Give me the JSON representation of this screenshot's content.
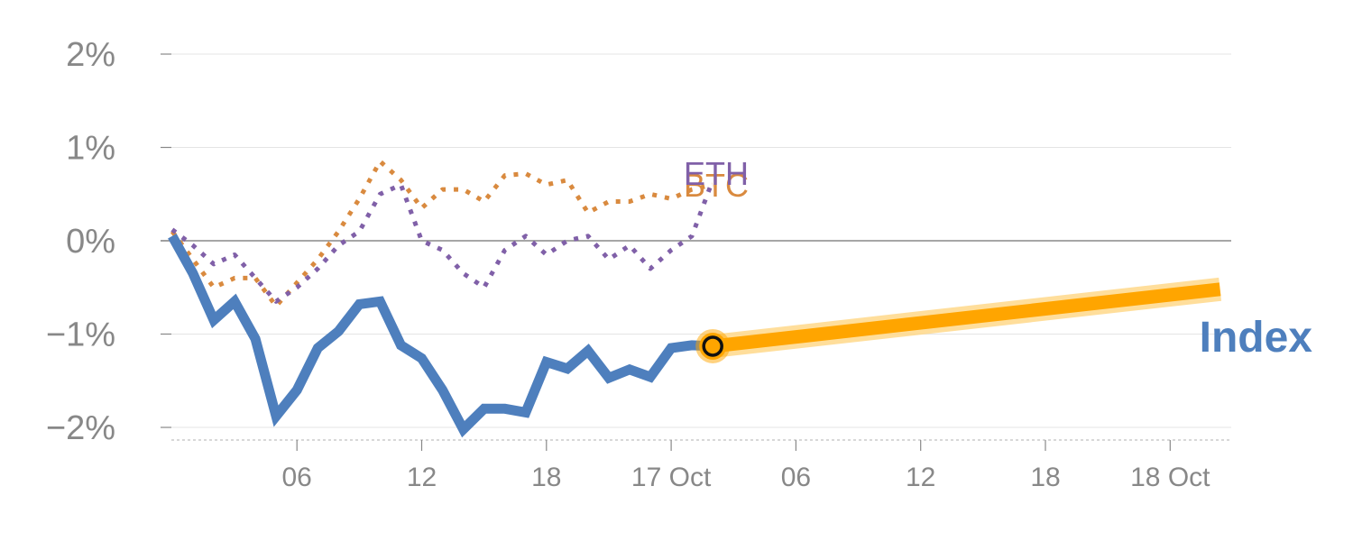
{
  "chart_data": {
    "type": "line",
    "title": "",
    "xlabel": "",
    "ylabel": "",
    "ylim": [
      -2.1,
      2.1
    ],
    "grid": true,
    "y_ticks": [
      {
        "value": 2,
        "label": "2%"
      },
      {
        "value": 1,
        "label": "1%"
      },
      {
        "value": 0,
        "label": "0%"
      },
      {
        "value": -1,
        "label": "−1%"
      },
      {
        "value": -2,
        "label": "−2%"
      }
    ],
    "x_ticks": [
      {
        "hours": 4,
        "label": "06"
      },
      {
        "hours": 10,
        "label": "12"
      },
      {
        "hours": 16,
        "label": "18"
      },
      {
        "hours": 22,
        "label": "17 Oct"
      },
      {
        "hours": 28,
        "label": "06"
      },
      {
        "hours": 34,
        "label": "12"
      },
      {
        "hours": 40,
        "label": "18"
      },
      {
        "hours": 46,
        "label": "18 Oct"
      }
    ],
    "x_range_hours": [
      -1.3,
      50.2
    ],
    "series": [
      {
        "name": "Index",
        "label": "Index",
        "color": "#4e7fbd",
        "style": "solid",
        "x_hours": [
          -2,
          -1,
          0,
          1,
          2,
          3,
          4,
          5,
          6,
          7,
          8,
          9,
          10,
          11,
          12,
          13,
          14,
          15,
          16,
          17,
          18,
          19,
          20,
          21,
          22,
          23,
          24
        ],
        "values": [
          0.05,
          -0.35,
          -0.85,
          -0.65,
          -1.05,
          -1.88,
          -1.6,
          -1.15,
          -0.97,
          -0.68,
          -0.65,
          -1.12,
          -1.26,
          -1.6,
          -2.02,
          -1.8,
          -1.8,
          -1.84,
          -1.3,
          -1.37,
          -1.18,
          -1.47,
          -1.38,
          -1.46,
          -1.15,
          -1.12,
          -1.13
        ]
      },
      {
        "name": "BTC",
        "label": "BTC",
        "color": "#d98a3f",
        "style": "dotted",
        "x_hours": [
          -2,
          -1,
          0,
          1,
          2,
          3,
          4,
          5,
          6,
          7,
          8,
          9,
          10,
          11,
          12,
          13,
          14,
          15,
          16,
          17,
          18,
          19,
          20,
          21,
          22,
          23,
          24
        ],
        "values": [
          0.1,
          -0.2,
          -0.5,
          -0.4,
          -0.4,
          -0.7,
          -0.45,
          -0.2,
          0.1,
          0.45,
          0.85,
          0.65,
          0.35,
          0.55,
          0.55,
          0.42,
          0.7,
          0.72,
          0.6,
          0.65,
          0.3,
          0.42,
          0.42,
          0.5,
          0.45,
          0.55,
          0.6
        ]
      },
      {
        "name": "ETH",
        "label": "ETH",
        "color": "#8060a8",
        "style": "dotted",
        "x_hours": [
          -2,
          -1,
          0,
          1,
          2,
          3,
          4,
          5,
          6,
          7,
          8,
          9,
          10,
          11,
          12,
          13,
          14,
          15,
          16,
          17,
          18,
          19,
          20,
          21,
          22,
          23,
          24
        ],
        "values": [
          0.12,
          -0.05,
          -0.25,
          -0.15,
          -0.4,
          -0.65,
          -0.5,
          -0.3,
          -0.05,
          0.1,
          0.5,
          0.6,
          0.0,
          -0.1,
          -0.35,
          -0.5,
          -0.1,
          0.05,
          -0.15,
          0.0,
          0.05,
          -0.2,
          -0.05,
          -0.3,
          -0.1,
          0.05,
          0.65
        ]
      },
      {
        "name": "Index projection",
        "color": "#ffa500",
        "style": "projection",
        "x_hours": [
          24,
          48.4
        ],
        "values": [
          -1.13,
          -0.52
        ]
      }
    ],
    "marker": {
      "x_hours": 24,
      "value": -1.13,
      "fill": "#ffa500"
    }
  }
}
